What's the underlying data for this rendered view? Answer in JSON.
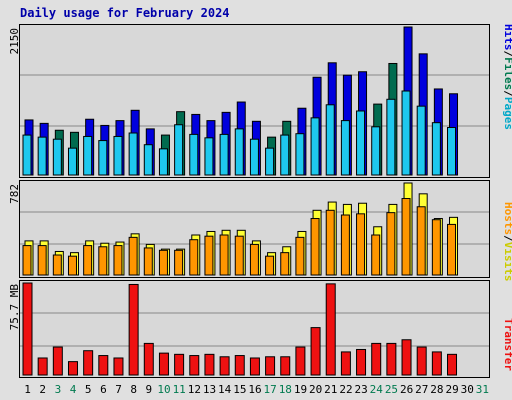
{
  "title": "Daily usage for February 2024",
  "colors": {
    "hits": "#0000dd",
    "hits_weekend": "#006b4f",
    "files": "#1ec8ee",
    "visits": "#ffff33",
    "hosts": "#ff9600",
    "kbytes": "#ee1111",
    "weekday_label": "#000000",
    "weekend_label": "#007a4f"
  },
  "chart_data": [
    {
      "type": "bar",
      "name": "hits_files_pages",
      "label_parts": [
        "Hits",
        "Files",
        "Pages"
      ],
      "tick_label": "2150",
      "ymax": 2150,
      "categories": [
        "1",
        "2",
        "3",
        "4",
        "5",
        "6",
        "7",
        "8",
        "9",
        "10",
        "11",
        "12",
        "13",
        "14",
        "15",
        "16",
        "17",
        "18",
        "19",
        "20",
        "21",
        "22",
        "23",
        "24",
        "25",
        "26",
        "27",
        "28",
        "29",
        "30",
        "31"
      ],
      "weekend_days": [
        3,
        4,
        10,
        11,
        17,
        18,
        24,
        25,
        31
      ],
      "series": [
        {
          "name": "Hits",
          "values": [
            800,
            750,
            650,
            620,
            810,
            720,
            790,
            940,
            670,
            580,
            920,
            880,
            790,
            910,
            1060,
            780,
            550,
            780,
            970,
            1420,
            1630,
            1450,
            1500,
            1030,
            1620,
            2150,
            1760,
            1250,
            1180,
            0,
            0
          ]
        },
        {
          "name": "Files",
          "values": [
            580,
            550,
            520,
            390,
            560,
            500,
            560,
            610,
            440,
            380,
            730,
            590,
            540,
            590,
            670,
            520,
            390,
            580,
            600,
            830,
            1020,
            790,
            930,
            700,
            1100,
            1220,
            1000,
            760,
            690,
            0,
            0
          ]
        },
        {
          "name": "Pages",
          "values": [
            0,
            0,
            0,
            0,
            0,
            0,
            0,
            0,
            0,
            0,
            0,
            0,
            0,
            0,
            0,
            0,
            0,
            0,
            0,
            0,
            0,
            0,
            0,
            0,
            0,
            0,
            0,
            0,
            0,
            0,
            0
          ]
        }
      ]
    },
    {
      "type": "bar",
      "name": "hosts_visits",
      "label_parts": [
        "Hosts",
        "Visits"
      ],
      "tick_label": "782",
      "ymax": 782,
      "categories": [
        "1",
        "2",
        "3",
        "4",
        "5",
        "6",
        "7",
        "8",
        "9",
        "10",
        "11",
        "12",
        "13",
        "14",
        "15",
        "16",
        "17",
        "18",
        "19",
        "20",
        "21",
        "22",
        "23",
        "24",
        "25",
        "26",
        "27",
        "28",
        "29",
        "30",
        "31"
      ],
      "series": [
        {
          "name": "Visits",
          "values": [
            290,
            290,
            200,
            190,
            290,
            270,
            280,
            350,
            260,
            220,
            220,
            340,
            370,
            380,
            380,
            290,
            190,
            240,
            370,
            550,
            620,
            600,
            610,
            410,
            600,
            782,
            690,
            480,
            490,
            0,
            0
          ]
        },
        {
          "name": "Hosts",
          "values": [
            250,
            250,
            170,
            160,
            250,
            240,
            250,
            320,
            230,
            210,
            210,
            300,
            330,
            340,
            330,
            260,
            160,
            190,
            320,
            480,
            550,
            510,
            520,
            340,
            530,
            650,
            580,
            470,
            430,
            0,
            0
          ]
        }
      ]
    },
    {
      "type": "bar",
      "name": "transfer",
      "label_parts": [
        "Transfer"
      ],
      "tick_label": "75.7 MB",
      "ymax": 75.7,
      "categories": [
        "1",
        "2",
        "3",
        "4",
        "5",
        "6",
        "7",
        "8",
        "9",
        "10",
        "11",
        "12",
        "13",
        "14",
        "15",
        "16",
        "17",
        "18",
        "19",
        "20",
        "21",
        "22",
        "23",
        "24",
        "25",
        "26",
        "27",
        "28",
        "29",
        "30",
        "31"
      ],
      "series": [
        {
          "name": "Transfer",
          "values": [
            75.7,
            14,
            23,
            11,
            20,
            16,
            14,
            74.5,
            26,
            18,
            17,
            16,
            17,
            15,
            16,
            14,
            15,
            15,
            23,
            39,
            75,
            19,
            21,
            26,
            26,
            29,
            23,
            19,
            17,
            0,
            0
          ]
        }
      ]
    }
  ]
}
